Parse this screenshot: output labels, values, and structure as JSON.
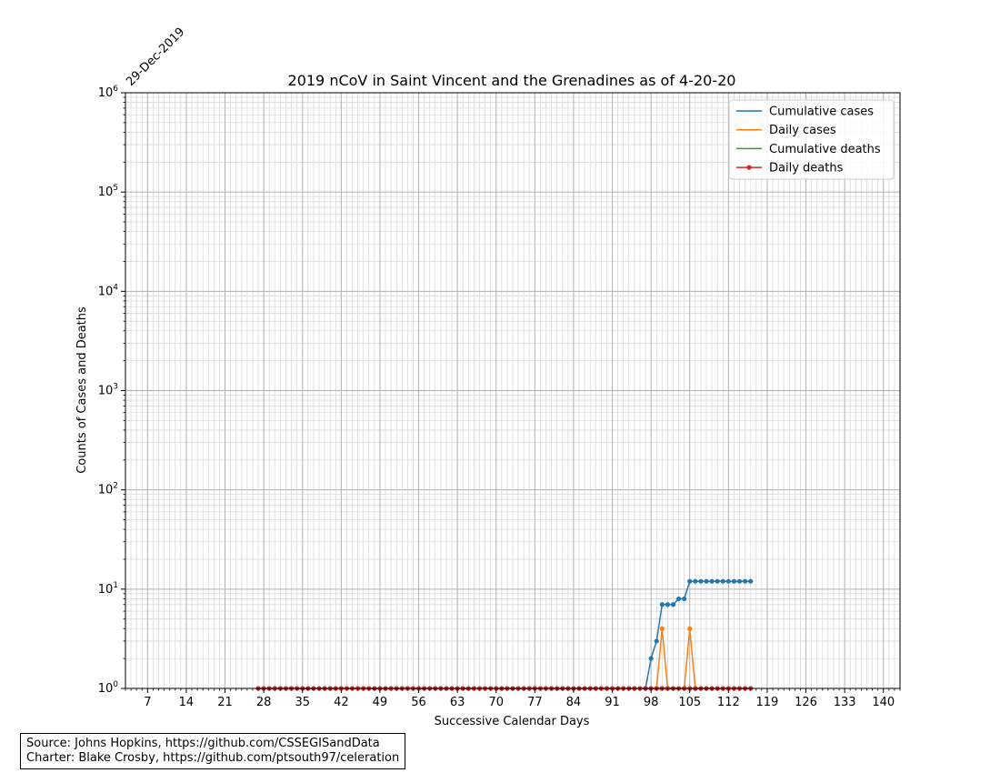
{
  "chart_data": {
    "type": "line",
    "title": "2019 nCoV in Saint Vincent and the Grenadines as of 4-20-20",
    "xlabel": "Successive Calendar Days",
    "ylabel": "Counts of Cases and Deaths",
    "start_date_label": "29-Dec-2019",
    "yscale": "log",
    "xlim": [
      3,
      143
    ],
    "ylim": [
      1,
      1000000
    ],
    "x_ticks": [
      7,
      14,
      21,
      28,
      35,
      42,
      49,
      56,
      63,
      70,
      77,
      84,
      91,
      98,
      105,
      112,
      119,
      126,
      133,
      140
    ],
    "grid": true,
    "legend_position": "upper-right",
    "series": [
      {
        "name": "Cumulative cases",
        "color": "#1f77b4",
        "markers": true,
        "x": [
          97,
          98,
          99,
          100,
          101,
          102,
          103,
          104,
          105,
          106,
          107,
          108,
          109,
          110,
          111,
          112,
          113,
          114,
          115,
          116
        ],
        "values": [
          1,
          2,
          3,
          7,
          7,
          7,
          8,
          8,
          12,
          12,
          12,
          12,
          12,
          12,
          12,
          12,
          12,
          12,
          12,
          12
        ]
      },
      {
        "name": "Daily cases",
        "color": "#ff7f0e",
        "markers": true,
        "x": [
          99,
          100,
          101,
          104,
          105,
          106
        ],
        "values": [
          1,
          4,
          1,
          1,
          4,
          1
        ]
      },
      {
        "name": "Cumulative deaths",
        "color": "#2ca02c",
        "markers": false,
        "x": [],
        "values": []
      },
      {
        "name": "Daily deaths",
        "color": "#d62728",
        "markers": true,
        "x_range": [
          27,
          116
        ],
        "constant_value": 1
      }
    ]
  },
  "source": {
    "line1": "Source: Johns Hopkins, https://github.com/CSSEGISandData",
    "line2": "Charter: Blake Crosby, https://github.com/ptsouth97/celeration"
  }
}
